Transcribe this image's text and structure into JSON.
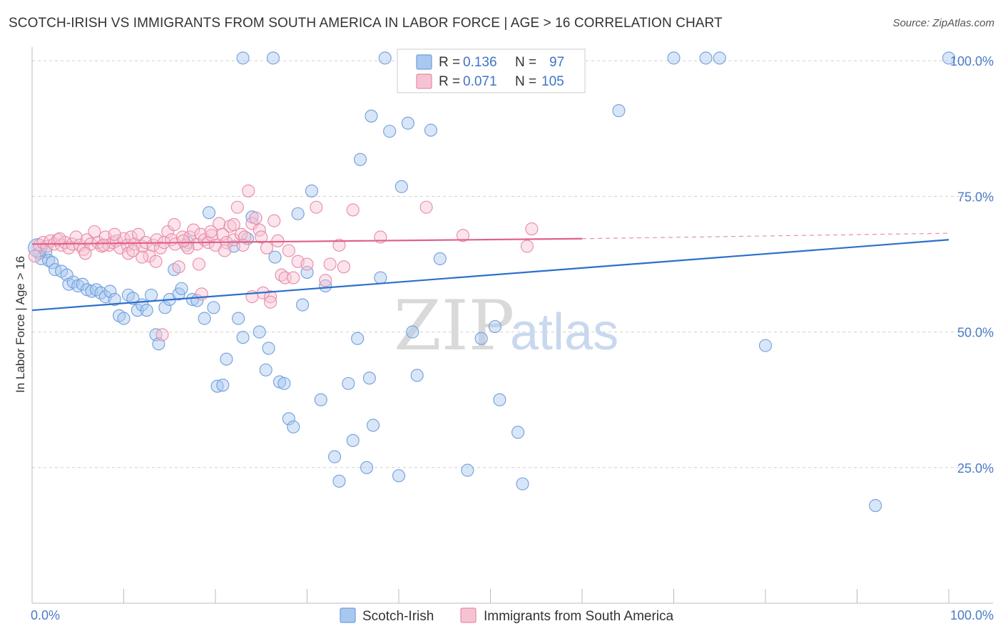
{
  "title": "SCOTCH-IRISH VS IMMIGRANTS FROM SOUTH AMERICA IN LABOR FORCE | AGE > 16 CORRELATION CHART",
  "source": "Source: ZipAtlas.com",
  "watermark": {
    "zip": "ZIP",
    "atlas": "atlas"
  },
  "colors": {
    "blue_fill": "#a9c8f0",
    "blue_stroke": "#6f9fdc",
    "blue_line": "#2d6fcc",
    "pink_fill": "#f6c3d3",
    "pink_stroke": "#e88aa8",
    "pink_line": "#e0608a",
    "grid": "#d0d0d0",
    "tick_text": "#4a7cc9"
  },
  "legend": {
    "rows": [
      {
        "r_label": "R =",
        "r_value": "0.136",
        "n_label": "N =",
        "n_value": "97"
      },
      {
        "r_label": "R =",
        "r_value": "0.071",
        "n_label": "N =",
        "n_value": "105"
      }
    ]
  },
  "bottom_legend": [
    "Scotch-Irish",
    "Immigrants from South America"
  ],
  "chart_data": {
    "type": "scatter",
    "title": "SCOTCH-IRISH VS IMMIGRANTS FROM SOUTH AMERICA IN LABOR FORCE | AGE > 16 CORRELATION CHART",
    "xlabel": "",
    "ylabel": "In Labor Force | Age > 16",
    "xlim": [
      0,
      100
    ],
    "ylim": [
      0,
      102
    ],
    "x_tick_labels": [
      "0.0%",
      "100.0%"
    ],
    "y_tick_labels": [
      "25.0%",
      "50.0%",
      "75.0%",
      "100.0%"
    ],
    "y_ticks": [
      25,
      50,
      75,
      100
    ],
    "grid": "horizontal dashed",
    "legend_position": "top-center",
    "series": [
      {
        "name": "Scotch-Irish",
        "r": 0.136,
        "n": 97,
        "trend": {
          "x": [
            0,
            100
          ],
          "y": [
            54.0,
            67.0
          ]
        },
        "points": [
          [
            0.8,
            64.5
          ],
          [
            1.0,
            63.5
          ],
          [
            1.5,
            64.8
          ],
          [
            1.8,
            63.2
          ],
          [
            2.2,
            62.8
          ],
          [
            2.5,
            61.5
          ],
          [
            3.2,
            61.2
          ],
          [
            3.8,
            60.5
          ],
          [
            4.0,
            58.8
          ],
          [
            4.5,
            59.2
          ],
          [
            5.0,
            58.5
          ],
          [
            5.5,
            58.8
          ],
          [
            6.0,
            57.8
          ],
          [
            6.5,
            57.5
          ],
          [
            7.0,
            57.8
          ],
          [
            7.5,
            57.2
          ],
          [
            8.0,
            56.5
          ],
          [
            8.5,
            57.5
          ],
          [
            9.0,
            56.0
          ],
          [
            9.5,
            53.0
          ],
          [
            10.0,
            52.5
          ],
          [
            10.5,
            56.8
          ],
          [
            11.0,
            56.2
          ],
          [
            11.5,
            54.0
          ],
          [
            12.0,
            55.0
          ],
          [
            12.5,
            54.0
          ],
          [
            13.0,
            56.8
          ],
          [
            13.5,
            49.5
          ],
          [
            13.8,
            47.8
          ],
          [
            14.5,
            54.5
          ],
          [
            15.0,
            56.0
          ],
          [
            15.5,
            61.5
          ],
          [
            16.0,
            57.0
          ],
          [
            16.3,
            58.0
          ],
          [
            17.0,
            66.5
          ],
          [
            17.5,
            56.0
          ],
          [
            18.0,
            55.8
          ],
          [
            18.8,
            52.5
          ],
          [
            19.3,
            72.0
          ],
          [
            19.8,
            54.5
          ],
          [
            20.2,
            40.0
          ],
          [
            20.8,
            40.2
          ],
          [
            21.2,
            45.0
          ],
          [
            22.0,
            65.8
          ],
          [
            22.5,
            52.5
          ],
          [
            23.0,
            49.0
          ],
          [
            23.5,
            67.2
          ],
          [
            24.0,
            71.2
          ],
          [
            24.8,
            50.0
          ],
          [
            25.5,
            43.0
          ],
          [
            25.8,
            47.0
          ],
          [
            26.5,
            63.8
          ],
          [
            27.0,
            40.8
          ],
          [
            27.5,
            40.5
          ],
          [
            28.0,
            34.0
          ],
          [
            28.5,
            32.5
          ],
          [
            29.0,
            71.8
          ],
          [
            29.5,
            55.0
          ],
          [
            30.0,
            61.0
          ],
          [
            30.5,
            76.0
          ],
          [
            31.5,
            37.5
          ],
          [
            32.0,
            58.5
          ],
          [
            33.0,
            27.0
          ],
          [
            33.5,
            22.5
          ],
          [
            34.5,
            40.5
          ],
          [
            35.0,
            30.0
          ],
          [
            35.5,
            48.8
          ],
          [
            36.5,
            25.0
          ],
          [
            36.8,
            41.5
          ],
          [
            37.2,
            32.8
          ],
          [
            38.0,
            60.0
          ],
          [
            38.5,
            100.5
          ],
          [
            39.0,
            87.0
          ],
          [
            40.0,
            23.5
          ],
          [
            41.0,
            88.5
          ],
          [
            41.5,
            50.0
          ],
          [
            42.0,
            42.0
          ],
          [
            43.0,
            100.5
          ],
          [
            43.5,
            87.2
          ],
          [
            44.5,
            63.5
          ],
          [
            47.5,
            24.5
          ],
          [
            49.0,
            48.8
          ],
          [
            50.5,
            51.0
          ],
          [
            51.0,
            37.5
          ],
          [
            53.0,
            31.5
          ],
          [
            53.5,
            22.0
          ],
          [
            64.0,
            90.8
          ],
          [
            70.0,
            100.5
          ],
          [
            73.5,
            100.5
          ],
          [
            75.0,
            100.5
          ],
          [
            80.0,
            47.5
          ],
          [
            92.0,
            18.0
          ],
          [
            100.0,
            100.5
          ],
          [
            37.0,
            89.8
          ],
          [
            35.8,
            81.8
          ],
          [
            40.3,
            76.8
          ],
          [
            23.0,
            100.5
          ],
          [
            26.3,
            100.5
          ]
        ]
      },
      {
        "name": "Immigrants from South America",
        "r": 0.071,
        "n": 105,
        "trend": {
          "x": [
            0,
            60
          ],
          "y": [
            66.2,
            67.2
          ]
        },
        "trend_extension": {
          "x": [
            60,
            100
          ],
          "y": [
            67.2,
            68.2
          ]
        },
        "points": [
          [
            0.3,
            64.0
          ],
          [
            0.8,
            66.0
          ],
          [
            1.2,
            66.5
          ],
          [
            1.6,
            65.8
          ],
          [
            2.0,
            66.8
          ],
          [
            2.4,
            66.2
          ],
          [
            2.8,
            67.0
          ],
          [
            3.2,
            66.0
          ],
          [
            3.6,
            66.5
          ],
          [
            4.0,
            65.5
          ],
          [
            4.4,
            66.2
          ],
          [
            4.8,
            67.5
          ],
          [
            5.2,
            66.0
          ],
          [
            5.6,
            65.2
          ],
          [
            6.0,
            67.0
          ],
          [
            6.4,
            66.2
          ],
          [
            6.8,
            68.5
          ],
          [
            7.2,
            66.5
          ],
          [
            7.6,
            65.8
          ],
          [
            8.0,
            67.5
          ],
          [
            8.4,
            66.0
          ],
          [
            8.8,
            66.5
          ],
          [
            9.2,
            66.8
          ],
          [
            9.6,
            65.5
          ],
          [
            10.0,
            67.2
          ],
          [
            10.4,
            66.0
          ],
          [
            10.8,
            67.5
          ],
          [
            11.2,
            66.2
          ],
          [
            11.6,
            68.0
          ],
          [
            12.0,
            65.8
          ],
          [
            12.4,
            66.5
          ],
          [
            12.8,
            64.0
          ],
          [
            13.2,
            66.0
          ],
          [
            13.6,
            67.0
          ],
          [
            14.0,
            65.5
          ],
          [
            14.4,
            66.5
          ],
          [
            14.8,
            68.5
          ],
          [
            15.2,
            67.0
          ],
          [
            15.6,
            66.2
          ],
          [
            16.0,
            62.0
          ],
          [
            16.4,
            67.5
          ],
          [
            16.8,
            66.0
          ],
          [
            17.2,
            67.5
          ],
          [
            17.6,
            68.8
          ],
          [
            18.0,
            66.2
          ],
          [
            18.4,
            68.0
          ],
          [
            18.8,
            67.0
          ],
          [
            19.2,
            66.5
          ],
          [
            19.6,
            67.8
          ],
          [
            20.0,
            66.0
          ],
          [
            20.4,
            70.0
          ],
          [
            20.8,
            68.0
          ],
          [
            21.2,
            66.5
          ],
          [
            21.6,
            69.5
          ],
          [
            22.0,
            67.0
          ],
          [
            22.4,
            73.0
          ],
          [
            22.8,
            68.0
          ],
          [
            23.2,
            67.5
          ],
          [
            23.6,
            76.0
          ],
          [
            24.0,
            70.0
          ],
          [
            24.4,
            71.0
          ],
          [
            24.8,
            68.8
          ],
          [
            25.2,
            57.2
          ],
          [
            25.6,
            65.5
          ],
          [
            26.0,
            56.5
          ],
          [
            26.4,
            70.5
          ],
          [
            26.8,
            66.8
          ],
          [
            27.2,
            60.5
          ],
          [
            27.6,
            60.0
          ],
          [
            28.0,
            65.0
          ],
          [
            28.5,
            60.0
          ],
          [
            29.0,
            63.0
          ],
          [
            30.0,
            62.5
          ],
          [
            31.0,
            73.0
          ],
          [
            32.0,
            59.5
          ],
          [
            32.5,
            62.5
          ],
          [
            33.5,
            66.0
          ],
          [
            34.0,
            62.0
          ],
          [
            35.0,
            72.5
          ],
          [
            38.0,
            67.5
          ],
          [
            43.0,
            73.0
          ],
          [
            47.0,
            67.8
          ],
          [
            54.0,
            65.8
          ],
          [
            54.5,
            69.0
          ],
          [
            9.0,
            68.0
          ],
          [
            10.5,
            64.5
          ],
          [
            13.5,
            63.0
          ],
          [
            14.2,
            49.5
          ],
          [
            15.5,
            69.8
          ],
          [
            17.0,
            65.5
          ],
          [
            18.2,
            62.5
          ],
          [
            18.5,
            57.0
          ],
          [
            19.5,
            68.5
          ],
          [
            21.0,
            65.0
          ],
          [
            22.0,
            69.8
          ],
          [
            23.0,
            66.0
          ],
          [
            24.0,
            56.5
          ],
          [
            25.0,
            67.5
          ],
          [
            26.0,
            55.5
          ],
          [
            3.0,
            67.2
          ],
          [
            5.8,
            64.5
          ],
          [
            7.8,
            66.0
          ],
          [
            11.0,
            65.0
          ],
          [
            12.0,
            63.8
          ],
          [
            16.5,
            66.8
          ]
        ]
      }
    ]
  }
}
